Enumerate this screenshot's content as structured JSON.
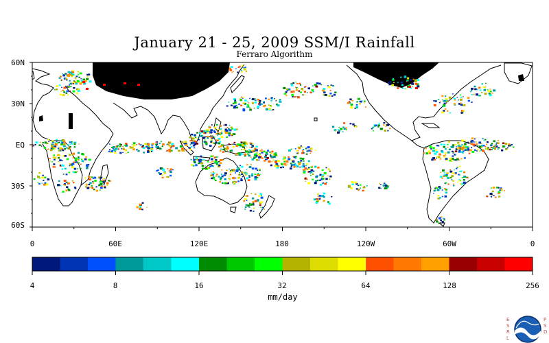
{
  "title": "January 21 - 25, 2009 SSM/I Rainfall",
  "subtitle": "Ferraro Algorithm",
  "lat_labels": [
    "60N",
    "30N",
    "EQ",
    "30S",
    "60S"
  ],
  "lon_labels": [
    "0",
    "60E",
    "120E",
    "180",
    "120W",
    "60W",
    "0"
  ],
  "colorbar": {
    "tick_labels": [
      "4",
      "8",
      "16",
      "32",
      "64",
      "128",
      "256"
    ],
    "units": "mm/day",
    "colors": [
      "#00187a",
      "#0032b4",
      "#0050ff",
      "#009a9a",
      "#00c8c8",
      "#00ffff",
      "#008c00",
      "#00c800",
      "#00ff00",
      "#b4b400",
      "#dcdc00",
      "#ffff00",
      "#ff5000",
      "#ff7800",
      "#ffa000",
      "#960000",
      "#c80000",
      "#ff0000"
    ]
  },
  "logo": {
    "name": "NOAA",
    "left_letters": "ESRL",
    "right_letters": "PSD"
  }
}
